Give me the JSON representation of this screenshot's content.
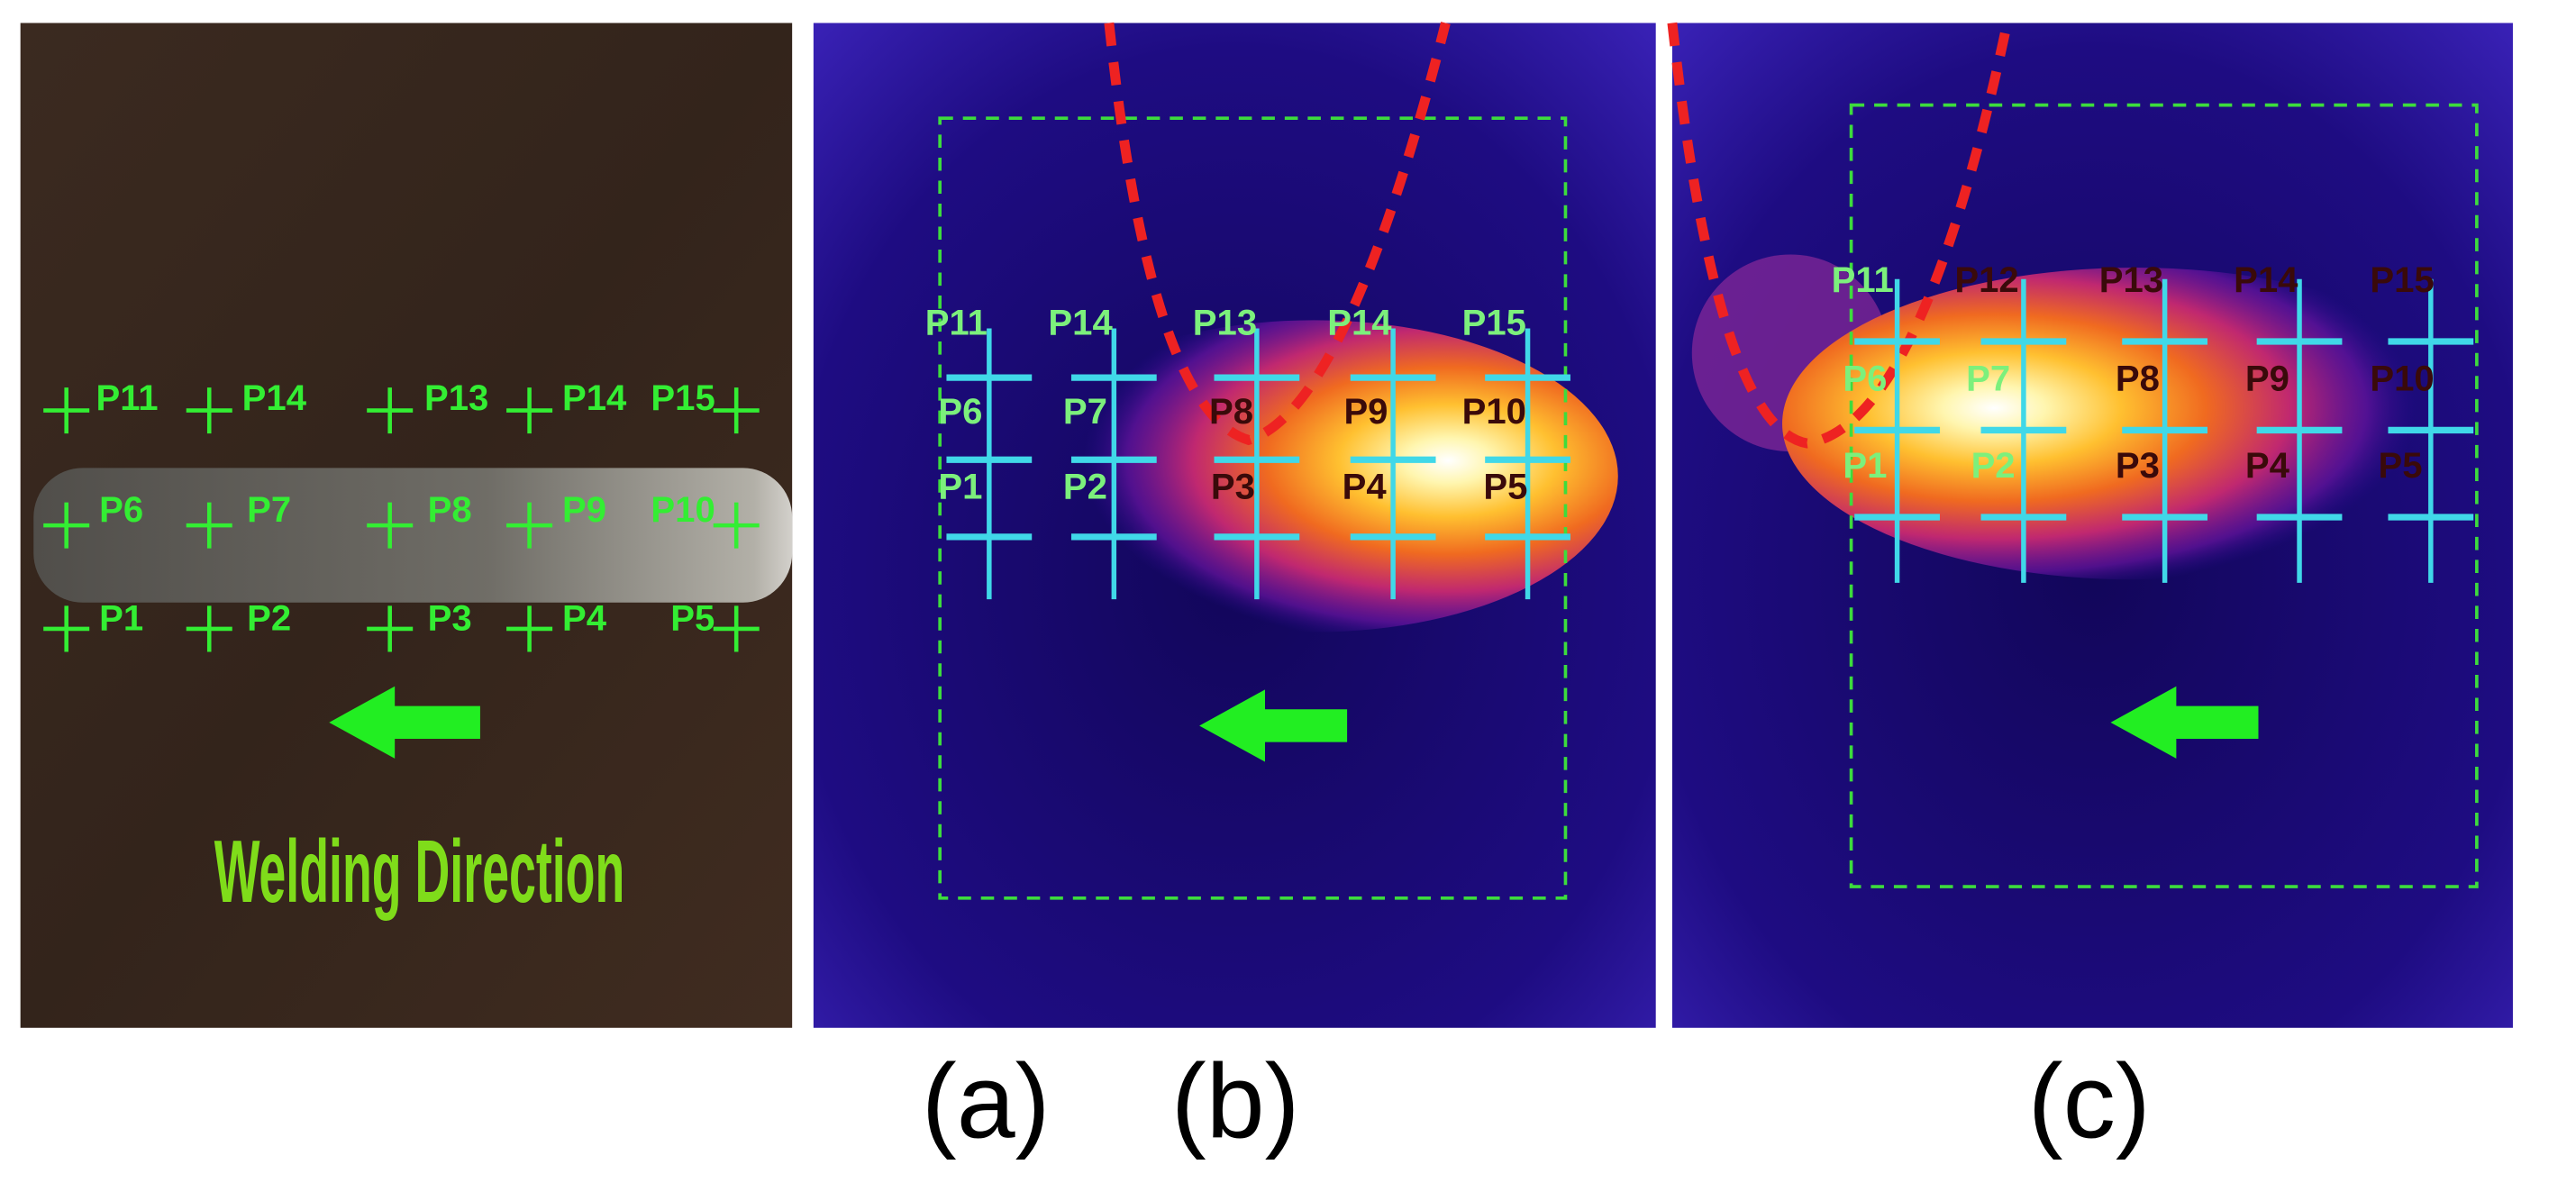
{
  "panels": [
    {
      "caption": "(a)",
      "points": [
        "P11",
        "P14",
        "P13",
        "P14",
        "P15",
        "P6",
        "P7",
        "P8",
        "P9",
        "P10",
        "P1",
        "P2",
        "P3",
        "P4",
        "P5"
      ],
      "direction_label": "Welding Direction"
    },
    {
      "caption": "(b)",
      "points": [
        "P11",
        "P14",
        "P13",
        "P14",
        "P15",
        "P6",
        "P7",
        "P8",
        "P9",
        "P10",
        "P1",
        "P2",
        "P3",
        "P4",
        "P5"
      ]
    },
    {
      "caption": "(c)",
      "points": [
        "P11",
        "P12",
        "P13",
        "P14",
        "P15",
        "P6",
        "P7",
        "P8",
        "P9",
        "P10",
        "P1",
        "P2",
        "P3",
        "P4",
        "P5"
      ]
    }
  ]
}
